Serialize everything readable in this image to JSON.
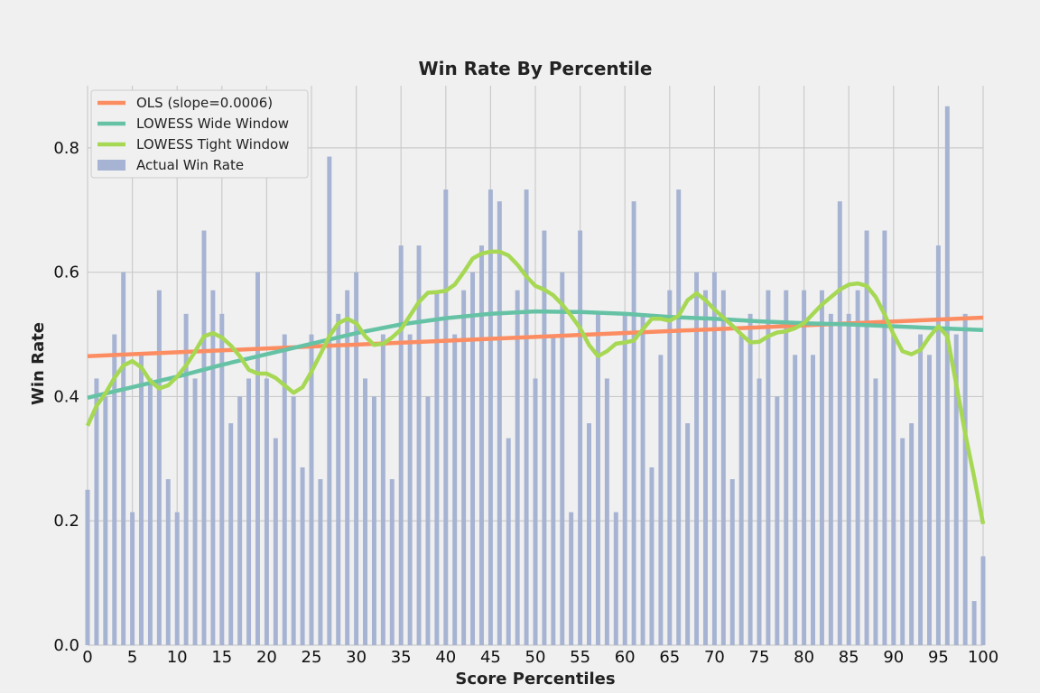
{
  "chart_data": {
    "type": "bar",
    "title": "Win Rate By Percentile",
    "xlabel": "Score Percentiles",
    "ylabel": "Win Rate",
    "xlim": [
      0,
      100
    ],
    "ylim": [
      0,
      0.9
    ],
    "x_ticks": [
      0,
      5,
      10,
      15,
      20,
      25,
      30,
      35,
      40,
      45,
      50,
      55,
      60,
      65,
      70,
      75,
      80,
      85,
      90,
      95,
      100
    ],
    "y_ticks": [
      0.0,
      0.2,
      0.4,
      0.6,
      0.8
    ],
    "y_tick_labels": [
      "0.0",
      "0.2",
      "0.4",
      "0.6",
      "0.8"
    ],
    "grid": true,
    "legend_position": "top-left",
    "colors": {
      "ols": "#fc8d62",
      "lowess_wide": "#66c2a5",
      "lowess_tight": "#a6d854",
      "bars": "#a6b3d2",
      "background": "#f0f0f0",
      "grid": "#cbcbcb"
    },
    "legend": [
      {
        "label": "OLS (slope=0.0006)",
        "key": "ols"
      },
      {
        "label": "LOWESS Wide Window",
        "key": "lowess_wide"
      },
      {
        "label": "LOWESS Tight Window",
        "key": "lowess_tight"
      },
      {
        "label": "Actual Win Rate",
        "key": "bars"
      }
    ],
    "bars": {
      "name": "Actual Win Rate",
      "x": [
        0,
        1,
        2,
        3,
        4,
        5,
        6,
        7,
        8,
        9,
        10,
        11,
        12,
        13,
        14,
        15,
        16,
        17,
        18,
        19,
        20,
        21,
        22,
        23,
        24,
        25,
        26,
        27,
        28,
        29,
        30,
        31,
        32,
        33,
        34,
        35,
        36,
        37,
        38,
        39,
        40,
        41,
        42,
        43,
        44,
        45,
        46,
        47,
        48,
        49,
        50,
        51,
        52,
        53,
        54,
        55,
        56,
        57,
        58,
        59,
        60,
        61,
        62,
        63,
        64,
        65,
        66,
        67,
        68,
        69,
        70,
        71,
        72,
        73,
        74,
        75,
        76,
        77,
        78,
        79,
        80,
        81,
        82,
        83,
        84,
        85,
        86,
        87,
        88,
        89,
        90,
        91,
        92,
        93,
        94,
        95,
        96,
        97,
        98,
        99,
        100
      ],
      "values": [
        0.25,
        0.429,
        0.4,
        0.5,
        0.6,
        0.214,
        0.467,
        0.429,
        0.571,
        0.267,
        0.214,
        0.533,
        0.429,
        0.667,
        0.571,
        0.533,
        0.357,
        0.4,
        0.429,
        0.6,
        0.429,
        0.333,
        0.5,
        0.4,
        0.286,
        0.5,
        0.267,
        0.786,
        0.533,
        0.571,
        0.6,
        0.429,
        0.4,
        0.5,
        0.267,
        0.643,
        0.5,
        0.643,
        0.4,
        0.571,
        0.733,
        0.5,
        0.571,
        0.6,
        0.643,
        0.733,
        0.714,
        0.333,
        0.571,
        0.733,
        0.429,
        0.667,
        0.5,
        0.6,
        0.214,
        0.667,
        0.357,
        0.533,
        0.429,
        0.214,
        0.533,
        0.714,
        0.533,
        0.286,
        0.467,
        0.571,
        0.733,
        0.357,
        0.6,
        0.571,
        0.6,
        0.571,
        0.267,
        0.5,
        0.533,
        0.429,
        0.571,
        0.4,
        0.571,
        0.467,
        0.571,
        0.467,
        0.571,
        0.533,
        0.714,
        0.533,
        0.571,
        0.667,
        0.429,
        0.667,
        0.5,
        0.333,
        0.357,
        0.5,
        0.467,
        0.643,
        0.867,
        0.5,
        0.533,
        0.071,
        0.143
      ]
    },
    "series": [
      {
        "name": "OLS (slope=0.0006)",
        "key": "ols",
        "x": [
          0,
          100
        ],
        "y": [
          0.465,
          0.527
        ]
      },
      {
        "name": "LOWESS Wide Window",
        "key": "lowess_wide",
        "x": [
          0,
          5,
          10,
          15,
          20,
          25,
          30,
          35,
          40,
          45,
          50,
          55,
          60,
          65,
          70,
          75,
          80,
          85,
          90,
          95,
          100
        ],
        "y": [
          0.398,
          0.415,
          0.432,
          0.451,
          0.468,
          0.485,
          0.502,
          0.516,
          0.526,
          0.533,
          0.537,
          0.536,
          0.533,
          0.528,
          0.525,
          0.521,
          0.518,
          0.516,
          0.513,
          0.51,
          0.507
        ]
      },
      {
        "name": "LOWESS Tight Window",
        "key": "lowess_tight",
        "x": [
          0,
          1,
          2,
          3,
          4,
          5,
          6,
          7,
          8,
          9,
          10,
          11,
          12,
          13,
          14,
          15,
          16,
          17,
          18,
          19,
          20,
          21,
          22,
          23,
          24,
          25,
          26,
          27,
          28,
          29,
          30,
          31,
          32,
          33,
          34,
          35,
          36,
          37,
          38,
          39,
          40,
          41,
          42,
          43,
          44,
          45,
          46,
          47,
          48,
          49,
          50,
          51,
          52,
          53,
          54,
          55,
          56,
          57,
          58,
          59,
          60,
          61,
          62,
          63,
          64,
          65,
          66,
          67,
          68,
          69,
          70,
          71,
          72,
          73,
          74,
          75,
          76,
          77,
          78,
          79,
          80,
          81,
          82,
          83,
          84,
          85,
          86,
          87,
          88,
          89,
          90,
          91,
          92,
          93,
          94,
          95,
          96,
          97,
          98,
          99,
          100
        ],
        "y": [
          0.353,
          0.385,
          0.405,
          0.43,
          0.45,
          0.457,
          0.447,
          0.425,
          0.413,
          0.418,
          0.432,
          0.45,
          0.472,
          0.497,
          0.502,
          0.495,
          0.482,
          0.465,
          0.443,
          0.437,
          0.437,
          0.43,
          0.418,
          0.406,
          0.415,
          0.44,
          0.468,
          0.497,
          0.518,
          0.525,
          0.518,
          0.497,
          0.483,
          0.485,
          0.495,
          0.508,
          0.53,
          0.552,
          0.567,
          0.568,
          0.57,
          0.58,
          0.6,
          0.622,
          0.63,
          0.633,
          0.633,
          0.627,
          0.612,
          0.593,
          0.578,
          0.572,
          0.563,
          0.548,
          0.53,
          0.51,
          0.483,
          0.465,
          0.473,
          0.485,
          0.487,
          0.49,
          0.508,
          0.525,
          0.525,
          0.522,
          0.53,
          0.555,
          0.566,
          0.555,
          0.54,
          0.527,
          0.514,
          0.5,
          0.487,
          0.488,
          0.497,
          0.503,
          0.505,
          0.51,
          0.518,
          0.533,
          0.548,
          0.56,
          0.572,
          0.58,
          0.582,
          0.578,
          0.56,
          0.532,
          0.5,
          0.473,
          0.468,
          0.475,
          0.496,
          0.513,
          0.497,
          0.42,
          0.34,
          0.27,
          0.195
        ]
      }
    ]
  }
}
